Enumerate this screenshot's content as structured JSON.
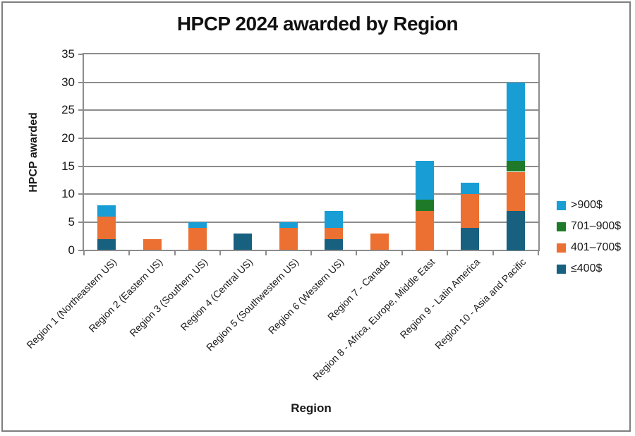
{
  "chart_data": {
    "type": "bar",
    "stacked": true,
    "title": "HPCP 2024 awarded by Region",
    "xlabel": "Region",
    "ylabel": "HPCP awarded",
    "ylim": [
      0,
      35
    ],
    "yticks": [
      0,
      5,
      10,
      15,
      20,
      25,
      30,
      35
    ],
    "grid": "horizontal",
    "legend_position": "right",
    "categories": [
      "Region 1 (Northeastern US)",
      "Region 2 (Eastern US)",
      "Region 3 (Southern US)",
      "Region 4 (Central US)",
      "Region 5 (Southwestern US)",
      "Region 6 (Western US)",
      "Region 7 - Canada",
      "Region 8 - Africa, Europe, Middle East",
      "Region 9 - Latin America",
      "Region 10 - Asia and Pacific"
    ],
    "series": [
      {
        "name": "≤400$",
        "color": "#17607F",
        "values": [
          2,
          0,
          0,
          3,
          0,
          2,
          0,
          0,
          4,
          7
        ]
      },
      {
        "name": "401–700$",
        "color": "#EC7031",
        "values": [
          4,
          2,
          4,
          0,
          4,
          2,
          3,
          7,
          6,
          7
        ]
      },
      {
        "name": "701–900$",
        "color": "#1E7A28",
        "values": [
          0,
          0,
          0,
          0,
          0,
          0,
          0,
          2,
          0,
          2
        ]
      },
      {
        "name": ">900$",
        "color": "#189ED4",
        "values": [
          2,
          0,
          1,
          0,
          1,
          3,
          0,
          7,
          2,
          14
        ]
      }
    ],
    "legend_order_top_to_bottom": [
      ">900$",
      "701–900$",
      "401–700$",
      "≤400$"
    ],
    "totals": [
      8,
      2,
      5,
      3,
      5,
      7,
      3,
      16,
      12,
      30
    ],
    "colors": {
      "axis": "#8C8C8C",
      "grid": "#8C8C8C",
      "frame_border": "#7F7F7F",
      "background": "#FFFFFF",
      "text": "#000000"
    }
  }
}
